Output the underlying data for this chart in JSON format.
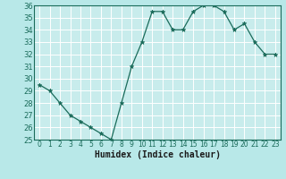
{
  "x": [
    0,
    1,
    2,
    3,
    4,
    5,
    6,
    7,
    8,
    9,
    10,
    11,
    12,
    13,
    14,
    15,
    16,
    17,
    18,
    19,
    20,
    21,
    22,
    23
  ],
  "y": [
    29.5,
    29.0,
    28.0,
    27.0,
    26.5,
    26.0,
    25.5,
    25.0,
    28.0,
    31.0,
    33.0,
    35.5,
    35.5,
    34.0,
    34.0,
    35.5,
    36.0,
    36.0,
    35.5,
    34.0,
    34.5,
    33.0,
    32.0,
    32.0
  ],
  "xlabel": "Humidex (Indice chaleur)",
  "ylim": [
    25,
    36
  ],
  "xlim": [
    -0.5,
    23.5
  ],
  "yticks": [
    25,
    26,
    27,
    28,
    29,
    30,
    31,
    32,
    33,
    34,
    35,
    36
  ],
  "xticks": [
    0,
    1,
    2,
    3,
    4,
    5,
    6,
    7,
    8,
    9,
    10,
    11,
    12,
    13,
    14,
    15,
    16,
    17,
    18,
    19,
    20,
    21,
    22,
    23
  ],
  "line_color": "#1a6b5a",
  "marker_color": "#1a6b5a",
  "fig_bg_color": "#b8e8e8",
  "plot_bg": "#c8ecec",
  "grid_color": "#ffffff",
  "tick_color": "#1a6b5a",
  "label_color": "#1a1a1a"
}
